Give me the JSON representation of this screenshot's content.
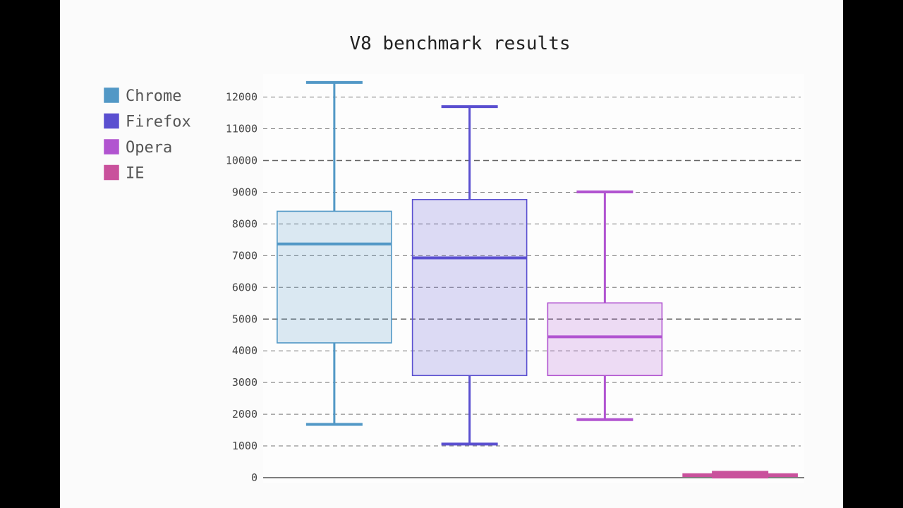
{
  "chart_data": {
    "type": "box",
    "title": "V8 benchmark results",
    "xlabel": "",
    "ylabel": "",
    "ylim": [
      0,
      12500
    ],
    "yticks": [
      0,
      1000,
      2000,
      3000,
      4000,
      5000,
      6000,
      7000,
      8000,
      9000,
      10000,
      11000,
      12000
    ],
    "ytick_labels": [
      "0",
      "1000",
      "2000",
      "3000",
      "4000",
      "5000",
      "6000",
      "7000",
      "8000",
      "9000",
      "10000",
      "11000",
      "12000"
    ],
    "major_gridlines": [
      5000,
      10000
    ],
    "grid": true,
    "legend_position": "top-left",
    "series": [
      {
        "name": "Chrome",
        "color": "#5298c6",
        "min": 1680,
        "q1": 4250,
        "median": 7370,
        "q3": 8400,
        "max": 12460
      },
      {
        "name": "Firefox",
        "color": "#5a4fd0",
        "min": 1060,
        "q1": 3220,
        "median": 6930,
        "q3": 8770,
        "max": 11700
      },
      {
        "name": "Opera",
        "color": "#b154d0",
        "min": 1830,
        "q1": 3220,
        "median": 4440,
        "q3": 5510,
        "max": 9010
      },
      {
        "name": "IE",
        "color": "#c9519c",
        "min": 20,
        "q1": 40,
        "median": 90,
        "q3": 120,
        "max": 170
      }
    ]
  }
}
